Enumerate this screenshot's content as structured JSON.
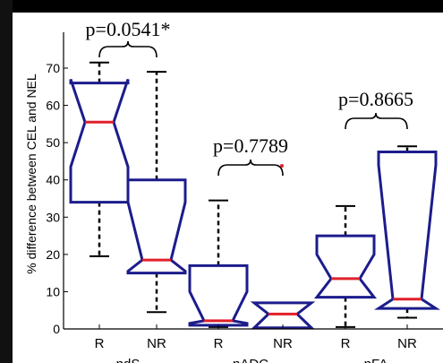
{
  "chart_data": {
    "type": "box",
    "ylabel": "% difference between CEL and NEL",
    "ylim": [
      0,
      75
    ],
    "yticks": [
      0,
      10,
      20,
      30,
      40,
      50,
      60,
      70
    ],
    "groups": [
      "ndS",
      "nADC",
      "nFA"
    ],
    "group_labels_visible": [
      "ndS",
      "nADC",
      "nFA"
    ],
    "categories": [
      "R",
      "NR",
      "R",
      "NR",
      "R",
      "NR"
    ],
    "boxes": [
      {
        "group": "ndS",
        "label": "R",
        "whisker_low": 19.5,
        "q1": 34,
        "median": 55.5,
        "q3": 66,
        "whisker_high": 71.5,
        "notch_low": 43.5,
        "notch_high": 67
      },
      {
        "group": "ndS",
        "label": "NR",
        "whisker_low": 4.5,
        "q1": 15,
        "median": 18.5,
        "q3": 40,
        "whisker_high": 69,
        "notch_low": 15.5,
        "notch_high": 34
      },
      {
        "group": "nADC",
        "label": "R",
        "whisker_low": 0.5,
        "q1": 1,
        "median": 2.2,
        "q3": 17,
        "whisker_high": 34.5,
        "notch_low": 1.5,
        "notch_high": 10
      },
      {
        "group": "nADC",
        "label": "NR",
        "whisker_low": 0.3,
        "q1": 0.3,
        "median": 4,
        "q3": 7,
        "whisker_high": 7,
        "notch_low": 0.3,
        "notch_high": 7
      },
      {
        "group": "nFA",
        "label": "R",
        "whisker_low": 0.5,
        "q1": 8.5,
        "median": 13.5,
        "q3": 25,
        "whisker_high": 33,
        "notch_low": 8.5,
        "notch_high": 20
      },
      {
        "group": "nFA",
        "label": "NR",
        "whisker_low": 3,
        "q1": 5.5,
        "median": 8,
        "q3": 47.5,
        "whisker_high": 49,
        "notch_low": 5.5,
        "notch_high": 44
      }
    ],
    "annotations": [
      {
        "text": "p=0.0541*",
        "group": "ndS"
      },
      {
        "text": "p=0.7789",
        "group": "nADC"
      },
      {
        "text": "p=0.8665",
        "group": "nFA"
      }
    ],
    "colors": {
      "box": "#1c1c8c",
      "median": "#e0202a",
      "whisker": "#000000"
    }
  }
}
